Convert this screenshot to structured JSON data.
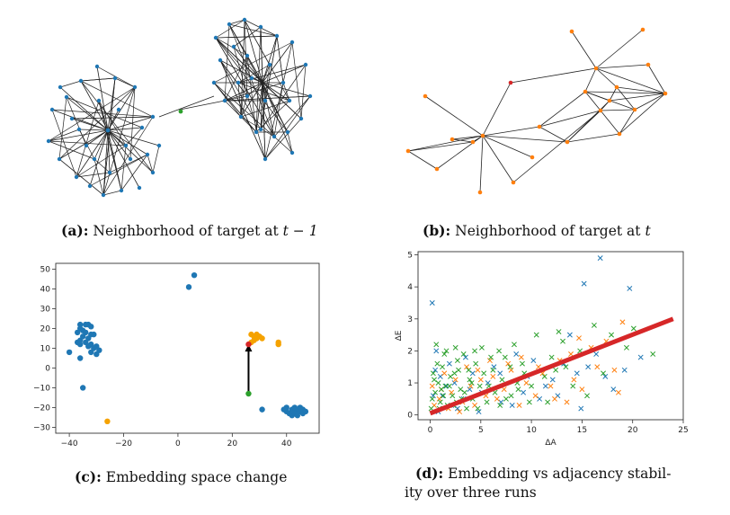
{
  "captions": {
    "a": {
      "label": "(a):",
      "text": "Neighborhood of target at ",
      "math": "t − 1"
    },
    "b": {
      "label": "(b):",
      "text": "Neighborhood of target at ",
      "math": "t"
    },
    "c": {
      "label": "(c):",
      "text": "Embedding space change"
    },
    "d": {
      "label": "(d):",
      "text_line1": "Embedding vs adjacency stabil-",
      "text_line2": "ity over three runs"
    }
  },
  "colors": {
    "blue": "#1f77b4",
    "orange": "#ff7f0e",
    "green": "#2ca02c",
    "red": "#d62728",
    "amber": "#f5a200",
    "edge": "#222222"
  },
  "chart_data": [
    {
      "type": "scatter",
      "panel": "c",
      "xlim": [
        -45,
        52
      ],
      "ylim": [
        -33,
        53
      ],
      "xticks": [
        "−40",
        "−20",
        "0",
        "20",
        "40"
      ],
      "yticks": [
        "50",
        "40",
        "30",
        "20",
        "10",
        "0",
        "−10",
        "−20",
        "−30"
      ],
      "series": [
        {
          "color": "blue",
          "points": [
            [
              -36,
              22
            ],
            [
              -34,
              22
            ],
            [
              -33,
              22
            ],
            [
              -32,
              21
            ],
            [
              -36,
              20
            ],
            [
              -35,
              19
            ],
            [
              -37,
              18
            ],
            [
              -34,
              18
            ],
            [
              -32,
              17
            ],
            [
              -31,
              17
            ],
            [
              -35,
              16
            ],
            [
              -33,
              15
            ],
            [
              -36,
              14
            ],
            [
              -37,
              13
            ],
            [
              -34,
              13
            ],
            [
              -32,
              12
            ],
            [
              -36,
              12
            ],
            [
              -33,
              11
            ],
            [
              -30,
              11
            ],
            [
              -31,
              10
            ],
            [
              -29,
              9
            ],
            [
              -32,
              8
            ],
            [
              -30,
              7
            ],
            [
              -36,
              5
            ],
            [
              -40,
              8
            ],
            [
              -35,
              -10
            ],
            [
              4,
              41
            ],
            [
              6,
              47
            ],
            [
              31,
              -21
            ],
            [
              40,
              -20
            ],
            [
              42,
              -21
            ],
            [
              43,
              -22
            ],
            [
              44,
              -21
            ],
            [
              45,
              -20
            ],
            [
              46,
              -21
            ],
            [
              41,
              -23
            ],
            [
              42,
              -24
            ],
            [
              43,
              -23
            ],
            [
              44,
              -24
            ],
            [
              45,
              -22
            ],
            [
              46,
              -23
            ],
            [
              40,
              -22
            ],
            [
              39,
              -21
            ],
            [
              43,
              -20
            ],
            [
              47,
              -22
            ]
          ]
        },
        {
          "color": "amber",
          "points": [
            [
              27,
              17
            ],
            [
              28,
              16
            ],
            [
              29,
              17
            ],
            [
              30,
              16
            ],
            [
              31,
              15
            ],
            [
              28,
              14
            ],
            [
              29,
              15
            ],
            [
              27,
              13
            ],
            [
              37,
              13
            ],
            [
              37,
              12
            ],
            [
              -26,
              -27
            ]
          ]
        },
        {
          "color": "green",
          "points": [
            [
              26,
              -13
            ]
          ]
        },
        {
          "color": "red",
          "points": [
            [
              26,
              12
            ]
          ]
        }
      ],
      "arrow": {
        "from": [
          26,
          -13
        ],
        "to": [
          26,
          12
        ]
      }
    },
    {
      "type": "scatter",
      "panel": "d",
      "xlabel": "ΔA",
      "ylabel": "ΔE",
      "xlim": [
        -1.2,
        25
      ],
      "ylim": [
        -0.15,
        5.1
      ],
      "xticks": [
        "0",
        "5",
        "10",
        "15",
        "20",
        "25"
      ],
      "yticks": [
        "0",
        "1",
        "2",
        "3",
        "4",
        "5"
      ],
      "marker": "x",
      "series": [
        {
          "color": "blue",
          "points": [
            [
              0.2,
              3.5
            ],
            [
              16.8,
              4.9
            ],
            [
              15.2,
              4.1
            ],
            [
              19.7,
              3.95
            ],
            [
              0.5,
              1.4
            ],
            [
              1.2,
              0.6
            ],
            [
              2.1,
              0.3
            ],
            [
              3.5,
              1.8
            ],
            [
              4.2,
              1.3
            ],
            [
              5.1,
              0.7
            ],
            [
              6.3,
              1.5
            ],
            [
              7.0,
              0.4
            ],
            [
              8.5,
              1.9
            ],
            [
              9.6,
              1.2
            ],
            [
              10.2,
              1.7
            ],
            [
              11.4,
              0.9
            ],
            [
              12.6,
              0.6
            ],
            [
              13.2,
              1.6
            ],
            [
              14.5,
              1.3
            ],
            [
              15.6,
              1.5
            ],
            [
              17.3,
              1.2
            ],
            [
              20.8,
              1.8
            ],
            [
              18.1,
              0.8
            ],
            [
              0.8,
              0.1
            ],
            [
              1.6,
              0.9
            ],
            [
              2.7,
              0.2
            ],
            [
              3.3,
              0.5
            ],
            [
              4.8,
              0.1
            ],
            [
              5.7,
              1.0
            ],
            [
              6.9,
              1.3
            ],
            [
              8.1,
              0.3
            ],
            [
              9.2,
              0.7
            ],
            [
              10.8,
              0.5
            ],
            [
              12.1,
              1.1
            ],
            [
              0.3,
              0.6
            ],
            [
              1.0,
              1.2
            ],
            [
              2.4,
              1.0
            ],
            [
              3.9,
              0.8
            ],
            [
              0.6,
              2.0
            ],
            [
              1.9,
              1.6
            ],
            [
              13.8,
              2.5
            ],
            [
              14.9,
              0.2
            ],
            [
              16.4,
              1.9
            ],
            [
              19.2,
              1.4
            ]
          ]
        },
        {
          "color": "orange",
          "points": [
            [
              0.4,
              0.3
            ],
            [
              1.1,
              0.8
            ],
            [
              1.8,
              0.2
            ],
            [
              2.5,
              1.1
            ],
            [
              3.2,
              0.4
            ],
            [
              4.0,
              0.9
            ],
            [
              4.7,
              1.4
            ],
            [
              5.5,
              0.6
            ],
            [
              6.2,
              1.2
            ],
            [
              7.3,
              0.8
            ],
            [
              8.0,
              1.4
            ],
            [
              8.8,
              0.3
            ],
            [
              9.5,
              1.0
            ],
            [
              10.4,
              0.6
            ],
            [
              11.1,
              1.3
            ],
            [
              11.9,
              0.9
            ],
            [
              12.8,
              1.7
            ],
            [
              13.5,
              0.4
            ],
            [
              14.2,
              1.1
            ],
            [
              15.0,
              0.8
            ],
            [
              15.9,
              2.1
            ],
            [
              16.5,
              1.5
            ],
            [
              17.4,
              2.3
            ],
            [
              18.2,
              1.4
            ],
            [
              19.0,
              2.9
            ],
            [
              18.6,
              0.7
            ],
            [
              0.9,
              0.5
            ],
            [
              2.1,
              0.7
            ],
            [
              3.6,
              1.5
            ],
            [
              5.0,
              1.1
            ],
            [
              6.6,
              0.5
            ],
            [
              7.7,
              1.6
            ],
            [
              9.0,
              1.8
            ],
            [
              10.7,
              1.5
            ],
            [
              12.3,
              0.5
            ],
            [
              13.9,
              1.9
            ],
            [
              0.2,
              0.9
            ],
            [
              1.4,
              1.3
            ],
            [
              2.9,
              0.1
            ],
            [
              4.4,
              0.3
            ],
            [
              5.9,
              1.7
            ],
            [
              14.7,
              2.4
            ]
          ]
        },
        {
          "color": "green",
          "points": [
            [
              0.1,
              0.2
            ],
            [
              0.3,
              1.3
            ],
            [
              0.5,
              0.7
            ],
            [
              0.8,
              1.0
            ],
            [
              1.0,
              0.4
            ],
            [
              1.2,
              1.5
            ],
            [
              1.5,
              0.9
            ],
            [
              1.7,
              0.3
            ],
            [
              2.0,
              1.2
            ],
            [
              2.2,
              0.6
            ],
            [
              2.5,
              2.1
            ],
            [
              2.8,
              1.4
            ],
            [
              3.0,
              0.8
            ],
            [
              3.3,
              1.9
            ],
            [
              3.6,
              0.2
            ],
            [
              3.9,
              1.1
            ],
            [
              4.2,
              0.5
            ],
            [
              4.5,
              1.6
            ],
            [
              4.9,
              0.9
            ],
            [
              5.3,
              1.3
            ],
            [
              5.6,
              0.4
            ],
            [
              6.0,
              1.8
            ],
            [
              6.4,
              0.7
            ],
            [
              6.8,
              2.0
            ],
            [
              7.1,
              1.1
            ],
            [
              7.5,
              0.5
            ],
            [
              7.9,
              1.5
            ],
            [
              8.3,
              2.2
            ],
            [
              8.7,
              0.8
            ],
            [
              9.1,
              1.6
            ],
            [
              9.8,
              0.4
            ],
            [
              10.5,
              2.5
            ],
            [
              11.3,
              1.2
            ],
            [
              12.0,
              1.8
            ],
            [
              12.7,
              2.6
            ],
            [
              13.4,
              1.5
            ],
            [
              14.1,
              0.9
            ],
            [
              14.8,
              2.0
            ],
            [
              15.5,
              0.6
            ],
            [
              16.2,
              2.8
            ],
            [
              17.1,
              1.3
            ],
            [
              17.9,
              2.5
            ],
            [
              19.4,
              2.1
            ],
            [
              20.1,
              2.7
            ],
            [
              22.0,
              1.9
            ],
            [
              0.4,
              1.1
            ],
            [
              0.9,
              0.2
            ],
            [
              1.3,
              0.6
            ],
            [
              1.9,
              0.9
            ],
            [
              2.3,
              0.3
            ],
            [
              2.7,
              1.7
            ],
            [
              3.1,
              0.5
            ],
            [
              3.8,
              1.4
            ],
            [
              4.4,
              2.0
            ],
            [
              4.7,
              0.2
            ],
            [
              5.1,
              2.1
            ],
            [
              5.8,
              0.9
            ],
            [
              6.2,
              1.4
            ],
            [
              6.9,
              0.3
            ],
            [
              7.4,
              1.8
            ],
            [
              8.0,
              0.6
            ],
            [
              8.6,
              1.0
            ],
            [
              9.3,
              1.3
            ],
            [
              10.0,
              0.9
            ],
            [
              11.6,
              0.4
            ],
            [
              12.4,
              1.4
            ],
            [
              13.1,
              2.3
            ],
            [
              0.2,
              0.5
            ],
            [
              0.7,
              1.6
            ],
            [
              1.1,
              0.8
            ],
            [
              1.6,
              2.0
            ],
            [
              2.4,
              1.3
            ],
            [
              3.4,
              0.7
            ],
            [
              4.1,
              1.0
            ],
            [
              0.6,
              2.2
            ],
            [
              1.4,
              1.9
            ],
            [
              2.6,
              0.4
            ]
          ]
        }
      ],
      "trendline": {
        "from": [
          0,
          0.05
        ],
        "to": [
          24,
          3.0
        ],
        "color": "red"
      }
    }
  ]
}
